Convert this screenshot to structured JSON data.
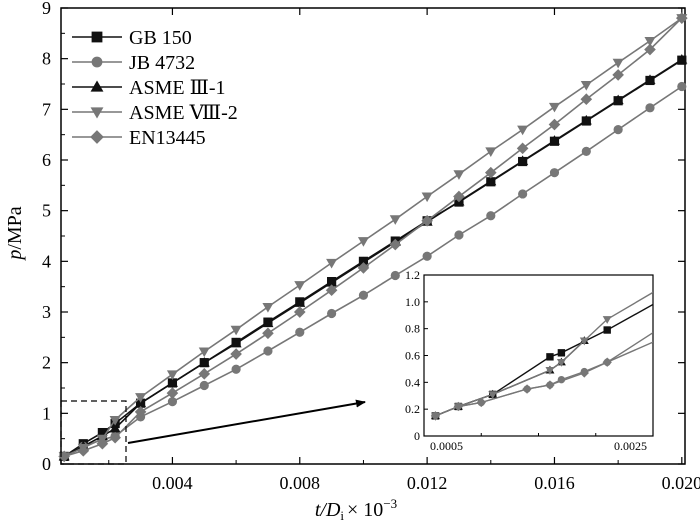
{
  "chart_data": {
    "type": "line",
    "xlabel_main": "t",
    "xlabel_sub": "/D",
    "xlabel_subscript": "i",
    "xlabel_unit": "× 10",
    "xlabel_exp": "−3",
    "ylabel_italic": "p",
    "ylabel_unit": "/MPa",
    "xlim": [
      0.0005,
      0.0201
    ],
    "ylim": [
      0,
      9
    ],
    "xticks": [
      0.004,
      0.008,
      0.012,
      0.016,
      0.02
    ],
    "xtick_labels": [
      "0.004",
      "0.008",
      "0.012",
      "0.016",
      "0.020"
    ],
    "yticks": [
      0,
      1,
      2,
      3,
      4,
      5,
      6,
      7,
      8,
      9
    ],
    "ytick_labels": [
      "0",
      "1",
      "2",
      "3",
      "4",
      "5",
      "6",
      "7",
      "8",
      "9"
    ],
    "legend_position": "top-left",
    "series": [
      {
        "name": "GB 150",
        "marker": "square",
        "color": "#111111",
        "x": [
          0.0006,
          0.0012,
          0.0018,
          0.0022,
          0.003,
          0.004,
          0.005,
          0.006,
          0.007,
          0.008,
          0.009,
          0.01,
          0.011,
          0.012,
          0.013,
          0.014,
          0.015,
          0.016,
          0.017,
          0.018,
          0.019,
          0.02
        ],
        "y": [
          0.15,
          0.4,
          0.62,
          0.8,
          1.2,
          1.6,
          2.0,
          2.4,
          2.8,
          3.2,
          3.6,
          4.0,
          4.4,
          4.8,
          5.17,
          5.57,
          5.97,
          6.37,
          6.77,
          7.17,
          7.57,
          7.97
        ]
      },
      {
        "name": "JB 4732",
        "marker": "circle",
        "color": "#777777",
        "x": [
          0.0006,
          0.0012,
          0.0018,
          0.0022,
          0.003,
          0.004,
          0.005,
          0.006,
          0.007,
          0.008,
          0.009,
          0.01,
          0.011,
          0.012,
          0.013,
          0.014,
          0.015,
          0.016,
          0.017,
          0.018,
          0.019,
          0.02
        ],
        "y": [
          0.15,
          0.35,
          0.48,
          0.55,
          0.93,
          1.23,
          1.55,
          1.87,
          2.23,
          2.6,
          2.97,
          3.33,
          3.72,
          4.1,
          4.52,
          4.9,
          5.33,
          5.75,
          6.17,
          6.6,
          7.03,
          7.45
        ]
      },
      {
        "name": "ASME Ⅲ-1",
        "marker": "triangle-up",
        "color": "#111111",
        "x": [
          0.0006,
          0.0012,
          0.0018,
          0.0022,
          0.003,
          0.004,
          0.005,
          0.006,
          0.007,
          0.008,
          0.009,
          0.01,
          0.011,
          0.012,
          0.013,
          0.014,
          0.015,
          0.016,
          0.017,
          0.018,
          0.019,
          0.02
        ],
        "y": [
          0.15,
          0.35,
          0.55,
          0.7,
          1.2,
          1.6,
          2.0,
          2.38,
          2.78,
          3.18,
          3.58,
          3.98,
          4.38,
          4.78,
          5.18,
          5.58,
          5.98,
          6.38,
          6.78,
          7.18,
          7.58,
          7.98
        ]
      },
      {
        "name": "ASME Ⅷ-2",
        "marker": "triangle-down",
        "color": "#777777",
        "x": [
          0.0006,
          0.0012,
          0.0018,
          0.0022,
          0.003,
          0.004,
          0.005,
          0.006,
          0.007,
          0.008,
          0.009,
          0.01,
          0.011,
          0.012,
          0.013,
          0.014,
          0.015,
          0.016,
          0.017,
          0.018,
          0.019,
          0.02
        ],
        "y": [
          0.15,
          0.32,
          0.5,
          0.87,
          1.32,
          1.77,
          2.22,
          2.65,
          3.1,
          3.53,
          3.97,
          4.4,
          4.83,
          5.28,
          5.72,
          6.17,
          6.6,
          7.05,
          7.48,
          7.92,
          8.35,
          8.8
        ]
      },
      {
        "name": "EN13445",
        "marker": "diamond",
        "color": "#777777",
        "x": [
          0.0006,
          0.0012,
          0.0018,
          0.0022,
          0.003,
          0.004,
          0.005,
          0.006,
          0.007,
          0.008,
          0.009,
          0.01,
          0.011,
          0.012,
          0.013,
          0.014,
          0.015,
          0.016,
          0.017,
          0.018,
          0.019,
          0.02
        ],
        "y": [
          0.15,
          0.26,
          0.4,
          0.52,
          1.03,
          1.4,
          1.78,
          2.17,
          2.58,
          3.0,
          3.43,
          3.87,
          4.33,
          4.8,
          5.28,
          5.75,
          6.23,
          6.7,
          7.2,
          7.68,
          8.18,
          8.8
        ]
      }
    ],
    "inset": {
      "xlim": [
        0.0005,
        0.0025
      ],
      "ylim": [
        0,
        1.2
      ],
      "xtick_labels": [
        "0.0005",
        "0.0025"
      ],
      "ytick_labels": [
        "0",
        "0.2",
        "0.4",
        "0.6",
        "0.8",
        "1.0",
        "1.2"
      ],
      "series": [
        {
          "name": "GB 150",
          "x": [
            0.0006,
            0.0008,
            0.0011,
            0.0016,
            0.0017,
            0.0021,
            0.0025
          ],
          "y": [
            0.15,
            0.22,
            0.31,
            0.59,
            0.62,
            0.79,
            0.98
          ]
        },
        {
          "name": "JB 4732",
          "x": [
            0.0006,
            0.0008,
            0.001,
            0.0014,
            0.0016,
            0.0017,
            0.0019,
            0.0021,
            0.0025
          ],
          "y": [
            0.15,
            0.22,
            0.25,
            0.35,
            0.38,
            0.42,
            0.48,
            0.55,
            0.7
          ]
        },
        {
          "name": "ASME Ⅲ-1",
          "x": [
            0.0006,
            0.0008,
            0.0011,
            0.0016,
            0.0017,
            0.0019
          ],
          "y": [
            0.15,
            0.22,
            0.31,
            0.49,
            0.55,
            0.71
          ]
        },
        {
          "name": "ASME Ⅷ-2",
          "x": [
            0.0006,
            0.0008,
            0.0011,
            0.0016,
            0.0017,
            0.0019,
            0.0021,
            0.0025
          ],
          "y": [
            0.15,
            0.22,
            0.31,
            0.49,
            0.55,
            0.71,
            0.87,
            1.07
          ]
        },
        {
          "name": "EN13445",
          "x": [
            0.0006,
            0.0008,
            0.001,
            0.0014,
            0.0016,
            0.0019,
            0.0021,
            0.0025
          ],
          "y": [
            0.15,
            0.22,
            0.25,
            0.35,
            0.38,
            0.47,
            0.55,
            0.77
          ]
        }
      ]
    }
  }
}
